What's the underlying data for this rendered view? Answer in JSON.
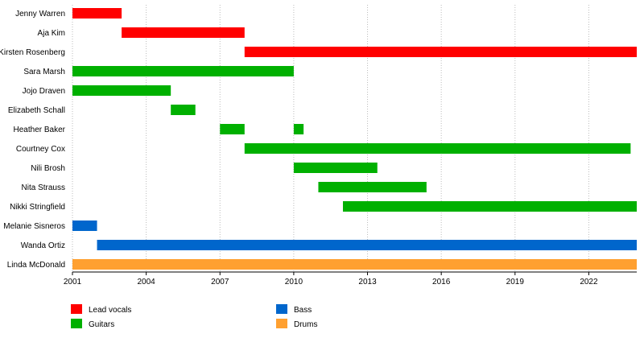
{
  "chart_data": {
    "type": "timeline",
    "x_axis": {
      "min": 2001,
      "max": 2023.95,
      "ticks": [
        2001,
        2004,
        2007,
        2010,
        2013,
        2016,
        2019,
        2022
      ],
      "grid": true
    },
    "members": [
      {
        "name": "Jenny Warren",
        "periods": [
          {
            "start": 2001,
            "end": 2003,
            "role": "Lead vocals"
          }
        ]
      },
      {
        "name": "Aja Kim",
        "periods": [
          {
            "start": 2003,
            "end": 2008,
            "role": "Lead vocals"
          }
        ]
      },
      {
        "name": "Kirsten Rosenberg",
        "periods": [
          {
            "start": 2008,
            "end": 2023.95,
            "role": "Lead vocals"
          }
        ]
      },
      {
        "name": "Sara Marsh",
        "periods": [
          {
            "start": 2001,
            "end": 2010,
            "role": "Guitars"
          }
        ]
      },
      {
        "name": "Jojo Draven",
        "periods": [
          {
            "start": 2001,
            "end": 2005,
            "role": "Guitars"
          }
        ]
      },
      {
        "name": "Elizabeth Schall",
        "periods": [
          {
            "start": 2005,
            "end": 2006,
            "role": "Guitars"
          }
        ]
      },
      {
        "name": "Heather Baker",
        "periods": [
          {
            "start": 2007,
            "end": 2008,
            "role": "Guitars"
          },
          {
            "start": 2010,
            "end": 2010.4,
            "role": "Guitars"
          }
        ]
      },
      {
        "name": "Courtney Cox",
        "periods": [
          {
            "start": 2008,
            "end": 2023.7,
            "role": "Guitars"
          }
        ]
      },
      {
        "name": "Nili Brosh",
        "periods": [
          {
            "start": 2010,
            "end": 2013.4,
            "role": "Guitars"
          }
        ]
      },
      {
        "name": "Nita Strauss",
        "periods": [
          {
            "start": 2011,
            "end": 2015.4,
            "role": "Guitars"
          }
        ]
      },
      {
        "name": "Nikki Stringfield",
        "periods": [
          {
            "start": 2012,
            "end": 2023.95,
            "role": "Guitars"
          }
        ]
      },
      {
        "name": "Melanie Sisneros",
        "periods": [
          {
            "start": 2001,
            "end": 2002,
            "role": "Bass"
          }
        ]
      },
      {
        "name": "Wanda Ortiz",
        "periods": [
          {
            "start": 2002,
            "end": 2023.95,
            "role": "Bass"
          }
        ]
      },
      {
        "name": "Linda McDonald",
        "periods": [
          {
            "start": 2001,
            "end": 2023.95,
            "role": "Drums"
          }
        ]
      }
    ],
    "legend": [
      {
        "label": "Lead vocals",
        "color": "#ff0000"
      },
      {
        "label": "Guitars",
        "color": "#00b000"
      },
      {
        "label": "Bass",
        "color": "#0066cc"
      },
      {
        "label": "Drums",
        "color": "#ffa030"
      }
    ],
    "legend_placement": "bottom"
  }
}
